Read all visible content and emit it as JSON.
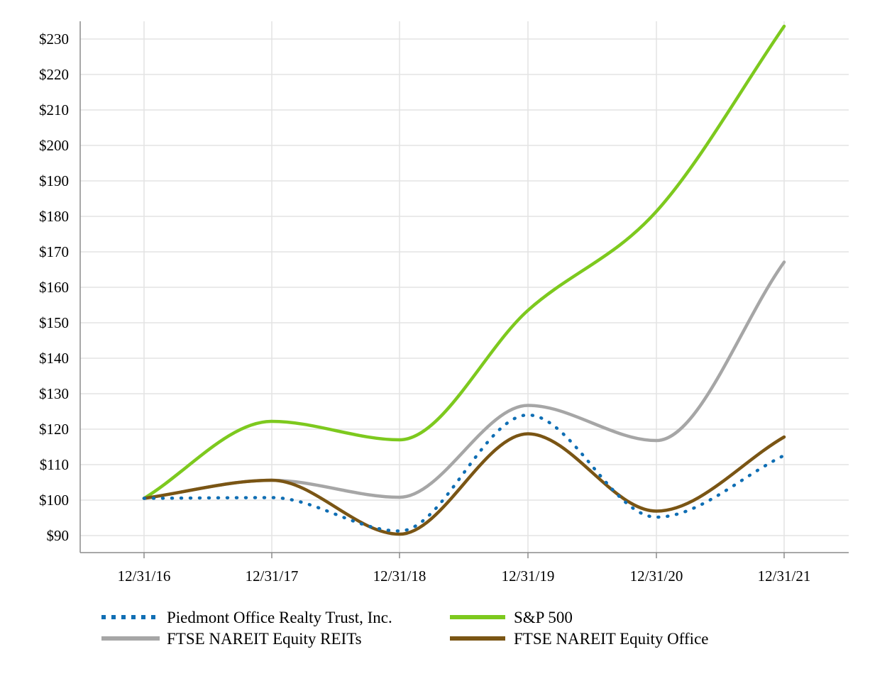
{
  "chart_data": {
    "type": "line",
    "title": "",
    "xlabel": "",
    "ylabel": "",
    "categories": [
      "12/31/16",
      "12/31/17",
      "12/31/18",
      "12/31/19",
      "12/31/20",
      "12/31/21"
    ],
    "ylim": [
      85,
      235
    ],
    "yticks": [
      90,
      100,
      110,
      120,
      130,
      140,
      150,
      160,
      170,
      180,
      190,
      200,
      210,
      220,
      230
    ],
    "ytick_labels": [
      "$90",
      "$100",
      "$110",
      "$120",
      "$130",
      "$140",
      "$150",
      "$160",
      "$170",
      "$180",
      "$190",
      "$200",
      "$210",
      "$220",
      "$230"
    ],
    "grid": true,
    "legend_position": "bottom",
    "series": [
      {
        "name": "Piedmont Office Realty Trust, Inc.",
        "values": [
          100.5,
          100.7,
          91.3,
          124.0,
          95.2,
          112.6
        ],
        "color": "#0F6EB4",
        "style": "dotted"
      },
      {
        "name": "S&P 500",
        "values": [
          100.5,
          122.2,
          117.0,
          153.5,
          181.4,
          233.6
        ],
        "color": "#7DC91E",
        "style": "solid"
      },
      {
        "name": "FTSE NAREIT Equity REITs",
        "values": [
          100.5,
          105.6,
          100.8,
          126.7,
          116.8,
          167.1
        ],
        "color": "#A6A6A6",
        "style": "solid"
      },
      {
        "name": "FTSE NAREIT Equity Office",
        "values": [
          100.5,
          105.6,
          90.4,
          118.7,
          96.9,
          117.8
        ],
        "color": "#7A5514",
        "style": "solid"
      }
    ]
  }
}
